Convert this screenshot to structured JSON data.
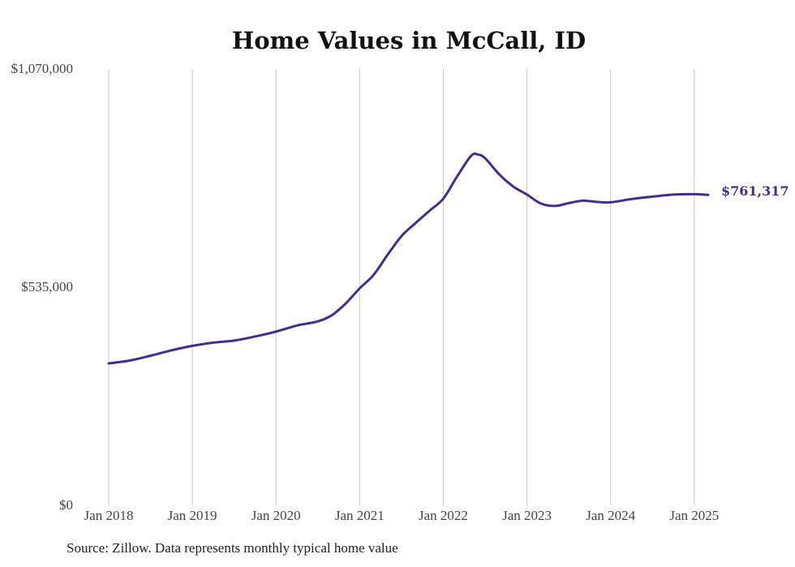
{
  "chart_data": {
    "type": "line",
    "title": "Home Values in McCall, ID",
    "xlabel": "",
    "ylabel": "",
    "ylim": [
      0,
      1070000
    ],
    "y_ticks": [
      {
        "value": 0,
        "label": "$0"
      },
      {
        "value": 535000,
        "label": "$535,000"
      },
      {
        "value": 1070000,
        "label": "$1,070,000"
      }
    ],
    "x_range": [
      "2018-01",
      "2025-03"
    ],
    "x_ticks": [
      {
        "date": "2018-01",
        "label": "Jan 2018"
      },
      {
        "date": "2019-01",
        "label": "Jan 2019"
      },
      {
        "date": "2020-01",
        "label": "Jan 2020"
      },
      {
        "date": "2021-01",
        "label": "Jan 2021"
      },
      {
        "date": "2022-01",
        "label": "Jan 2022"
      },
      {
        "date": "2023-01",
        "label": "Jan 2023"
      },
      {
        "date": "2024-01",
        "label": "Jan 2024"
      },
      {
        "date": "2025-01",
        "label": "Jan 2025"
      }
    ],
    "grid": "vertical",
    "series": [
      {
        "color": "#3b3191",
        "points": [
          {
            "x": "2018-01",
            "y": 348000
          },
          {
            "x": "2018-04",
            "y": 355000
          },
          {
            "x": "2018-07",
            "y": 367000
          },
          {
            "x": "2018-10",
            "y": 380000
          },
          {
            "x": "2019-01",
            "y": 391000
          },
          {
            "x": "2019-04",
            "y": 399000
          },
          {
            "x": "2019-07",
            "y": 404000
          },
          {
            "x": "2019-10",
            "y": 414000
          },
          {
            "x": "2020-01",
            "y": 426000
          },
          {
            "x": "2020-04",
            "y": 441000
          },
          {
            "x": "2020-07",
            "y": 451000
          },
          {
            "x": "2020-09",
            "y": 466000
          },
          {
            "x": "2020-11",
            "y": 495000
          },
          {
            "x": "2021-01",
            "y": 532000
          },
          {
            "x": "2021-03",
            "y": 565000
          },
          {
            "x": "2021-05",
            "y": 614000
          },
          {
            "x": "2021-07",
            "y": 660000
          },
          {
            "x": "2021-09",
            "y": 692000
          },
          {
            "x": "2021-11",
            "y": 722000
          },
          {
            "x": "2022-01",
            "y": 752000
          },
          {
            "x": "2022-03",
            "y": 807000
          },
          {
            "x": "2022-05",
            "y": 857000
          },
          {
            "x": "2022-06",
            "y": 860000
          },
          {
            "x": "2022-07",
            "y": 851000
          },
          {
            "x": "2022-09",
            "y": 812000
          },
          {
            "x": "2022-11",
            "y": 782000
          },
          {
            "x": "2023-01",
            "y": 762000
          },
          {
            "x": "2023-03",
            "y": 740000
          },
          {
            "x": "2023-05",
            "y": 734000
          },
          {
            "x": "2023-07",
            "y": 741000
          },
          {
            "x": "2023-09",
            "y": 747000
          },
          {
            "x": "2023-11",
            "y": 744000
          },
          {
            "x": "2024-01",
            "y": 743000
          },
          {
            "x": "2024-04",
            "y": 751000
          },
          {
            "x": "2024-07",
            "y": 757000
          },
          {
            "x": "2024-10",
            "y": 762000
          },
          {
            "x": "2025-01",
            "y": 763000
          },
          {
            "x": "2025-03",
            "y": 761317
          }
        ],
        "end_label": "$761,317"
      }
    ],
    "source_note": "Source: Zillow. Data represents monthly typical home value"
  }
}
